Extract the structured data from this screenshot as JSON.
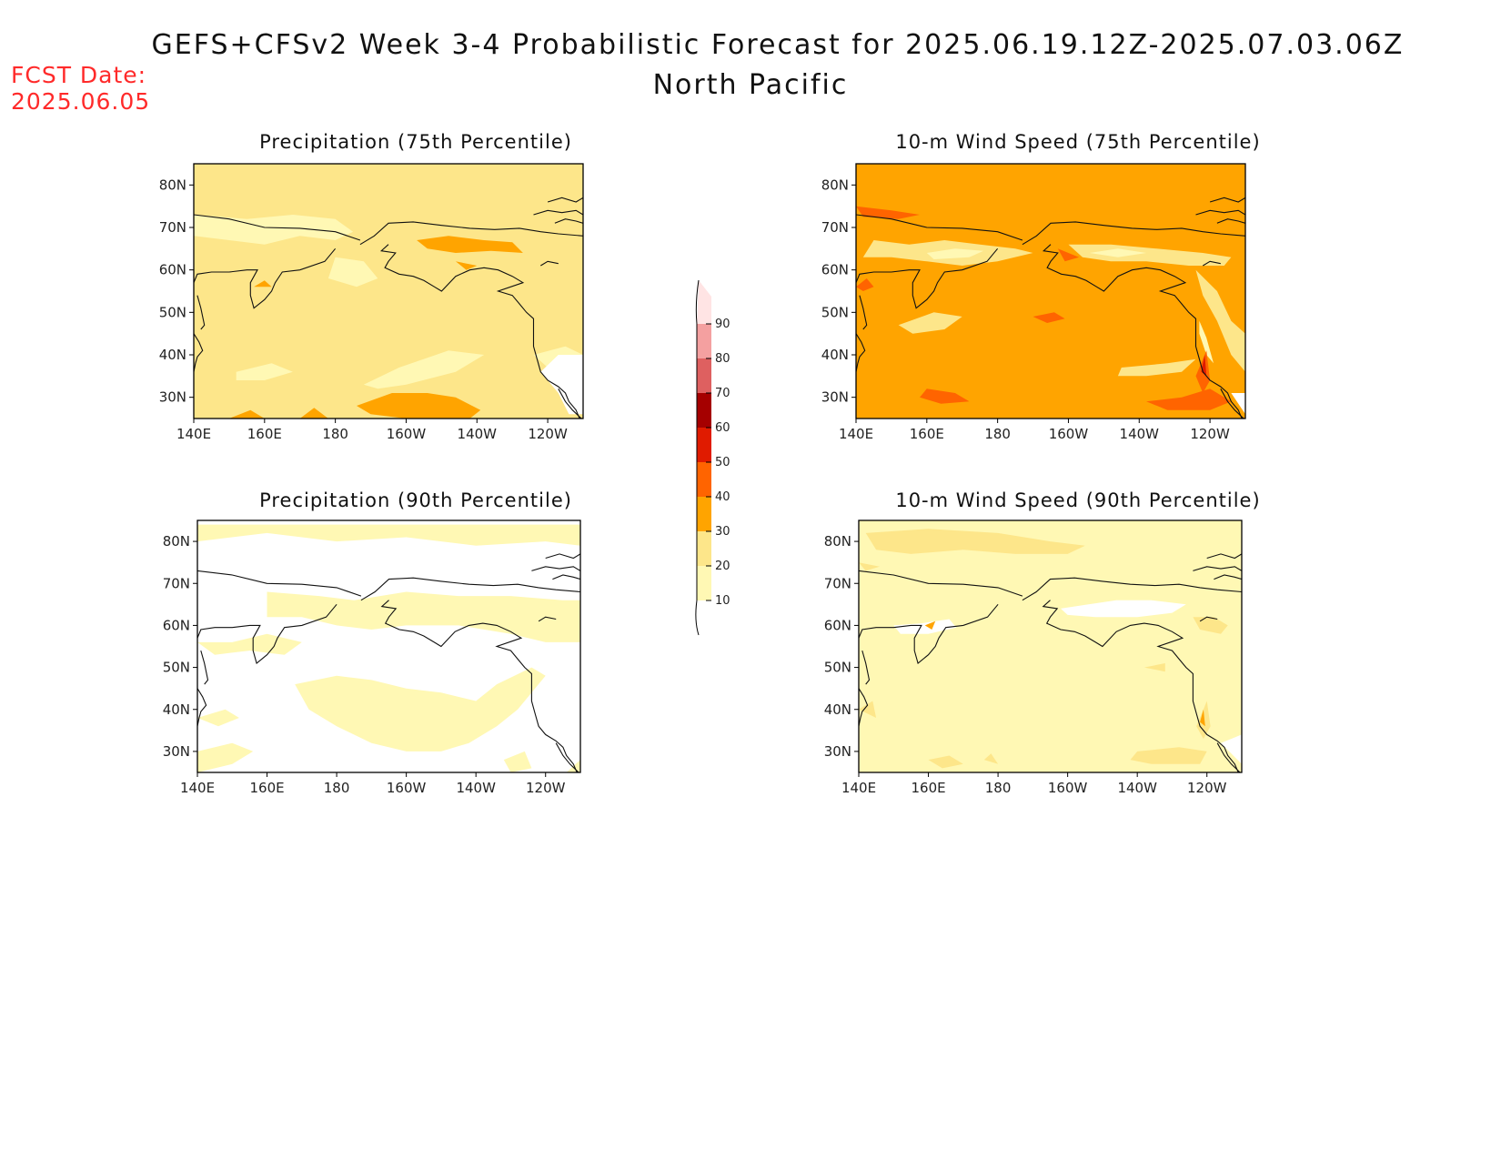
{
  "header": {
    "title": "GEFS+CFSv2 Week 3-4 Probabilistic Forecast for 2025.06.19.12Z-2025.07.03.06Z",
    "region": "North Pacific",
    "fcst_label": "FCST Date:",
    "fcst_date": "2025.06.05"
  },
  "panels": [
    {
      "title": "Precipitation (75th Percentile)",
      "field": "precip75"
    },
    {
      "title": "10-m Wind Speed (75th Percentile)",
      "field": "wind75"
    },
    {
      "title": "Precipitation (90th Percentile)",
      "field": "precip90"
    },
    {
      "title": "10-m Wind Speed (90th Percentile)",
      "field": "wind90"
    }
  ],
  "axes": {
    "lon_labels": [
      "140E",
      "160E",
      "180",
      "160W",
      "140W",
      "120W"
    ],
    "lat_labels": [
      "80N",
      "70N",
      "60N",
      "50N",
      "40N",
      "30N"
    ]
  },
  "colorbar": {
    "levels": [
      "10",
      "20",
      "30",
      "40",
      "50",
      "60",
      "70",
      "80",
      "90"
    ],
    "colors": [
      "#fff8b4",
      "#fde68a",
      "#ffa400",
      "#ff6400",
      "#e01b00",
      "#a50000",
      "#de6060",
      "#f4a0a0",
      "#ffe4e4"
    ]
  }
}
